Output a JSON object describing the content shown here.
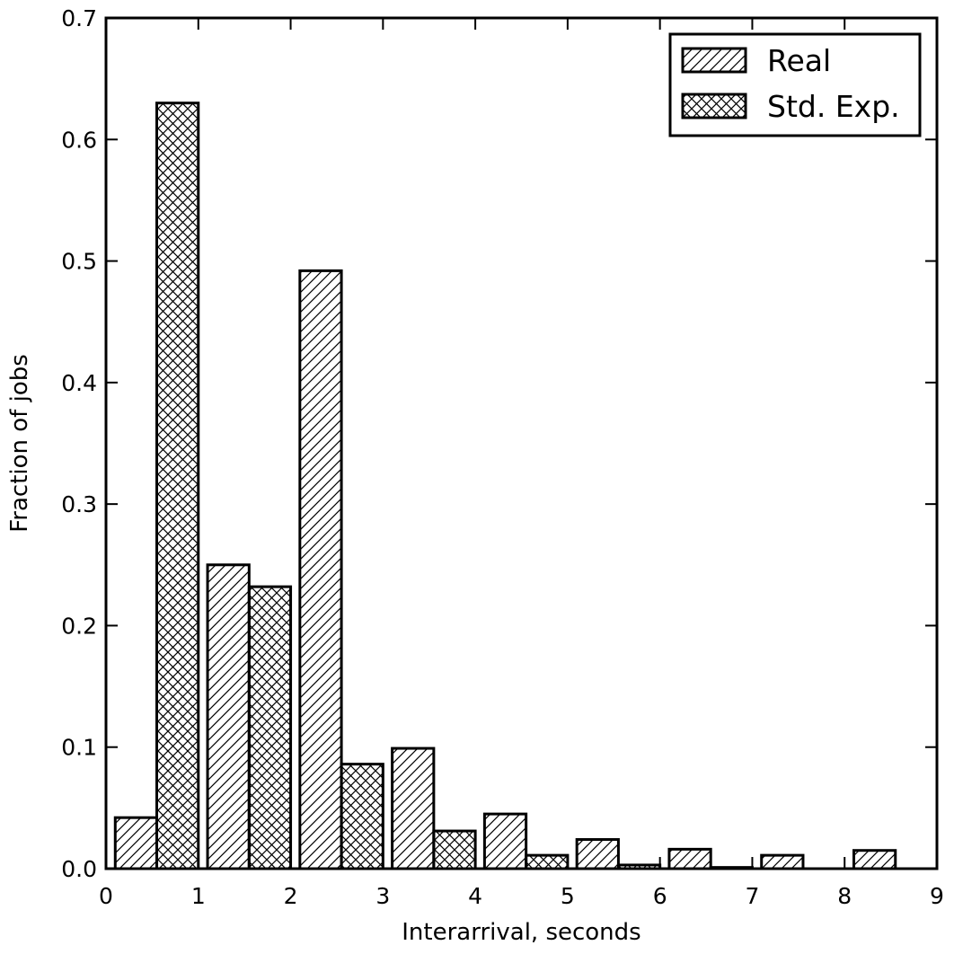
{
  "chart_data": {
    "type": "bar",
    "xlabel": "Interarrival, seconds",
    "ylabel": "Fraction of jobs",
    "xlim": [
      0,
      9
    ],
    "ylim": [
      0,
      0.7
    ],
    "xticks": [
      "0",
      "1",
      "2",
      "3",
      "4",
      "5",
      "6",
      "7",
      "8",
      "9"
    ],
    "yticks": [
      "0.0",
      "0.1",
      "0.2",
      "0.3",
      "0.4",
      "0.5",
      "0.6",
      "0.7"
    ],
    "legend_position": "top-right",
    "grid": false,
    "bin_width": 1,
    "x": [
      0,
      1,
      2,
      3,
      4,
      5,
      6,
      7,
      8
    ],
    "series": [
      {
        "name": "Real",
        "hatch": "diagonal",
        "values": [
          0.042,
          0.25,
          0.492,
          0.099,
          0.045,
          0.024,
          0.016,
          0.011,
          0.015
        ]
      },
      {
        "name": "Std. Exp.",
        "hatch": "crosshatch",
        "values": [
          0.63,
          0.232,
          0.086,
          0.031,
          0.011,
          0.003,
          0.001,
          0.0,
          0.0
        ]
      }
    ]
  }
}
